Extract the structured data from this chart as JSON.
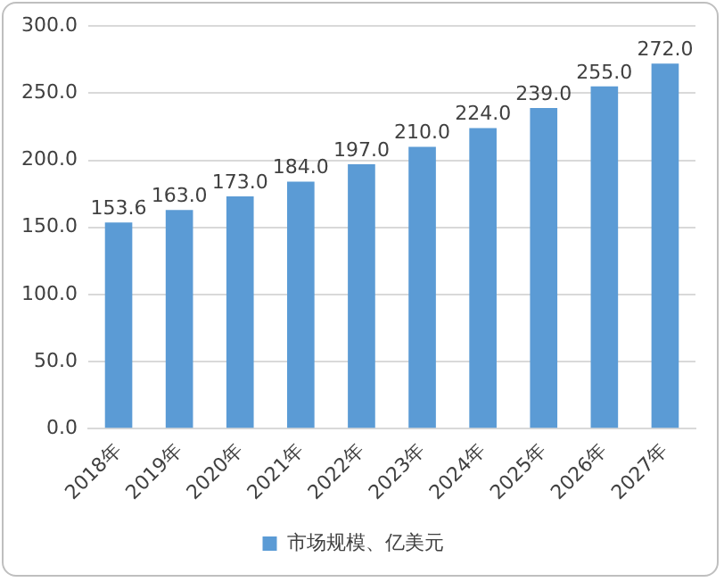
{
  "chart_data": {
    "type": "bar",
    "categories": [
      "2018年",
      "2019年",
      "2020年",
      "2021年",
      "2022年",
      "2023年",
      "2024年",
      "2025年",
      "2026年",
      "2027年"
    ],
    "series": [
      {
        "name": "市场规模、亿美元",
        "color": "#5b9bd5",
        "values": [
          153.6,
          163.0,
          173.0,
          184.0,
          197.0,
          210.0,
          224.0,
          239.0,
          255.0,
          272.0
        ],
        "value_labels": [
          "153.6",
          "163.0",
          "173.0",
          "184.0",
          "197.0",
          "210.0",
          "224.0",
          "239.0",
          "255.0",
          "272.0"
        ]
      }
    ],
    "ylim": [
      0,
      300
    ],
    "yticks": [
      {
        "value": 0,
        "label": "0.0"
      },
      {
        "value": 50,
        "label": "50.0"
      },
      {
        "value": 100,
        "label": "100.0"
      },
      {
        "value": 150,
        "label": "150.0"
      },
      {
        "value": 200,
        "label": "200.0"
      },
      {
        "value": 250,
        "label": "250.0"
      },
      {
        "value": 300,
        "label": "300.0"
      }
    ],
    "grid": "y",
    "legend": "bottom"
  }
}
